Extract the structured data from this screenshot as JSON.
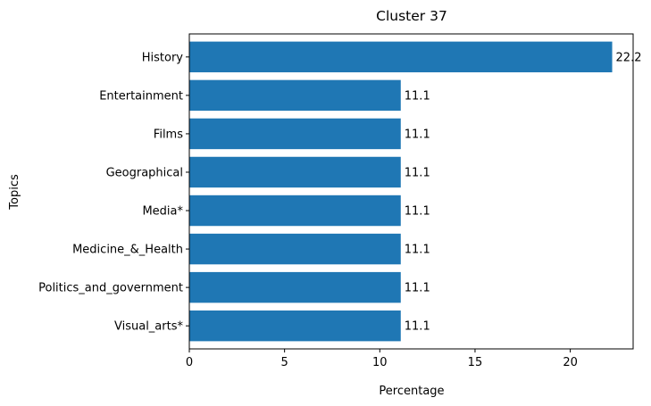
{
  "chart_data": {
    "type": "bar",
    "orientation": "horizontal",
    "title": "Cluster 37",
    "xlabel": "Percentage",
    "ylabel": "Topics",
    "categories": [
      "History",
      "Entertainment",
      "Films",
      "Geographical",
      "Media*",
      "Medicine_&_Health",
      "Politics_and_government",
      "Visual_arts*"
    ],
    "values": [
      22.2,
      11.1,
      11.1,
      11.1,
      11.1,
      11.1,
      11.1,
      11.1
    ],
    "data_labels": [
      "22.2",
      "11.1",
      "11.1",
      "11.1",
      "11.1",
      "11.1",
      "11.1",
      "11.1"
    ],
    "xlim": [
      0,
      23.3
    ],
    "xticks": [
      0,
      5,
      10,
      15,
      20
    ],
    "grid": false,
    "bar_color": "#1f77b4"
  }
}
